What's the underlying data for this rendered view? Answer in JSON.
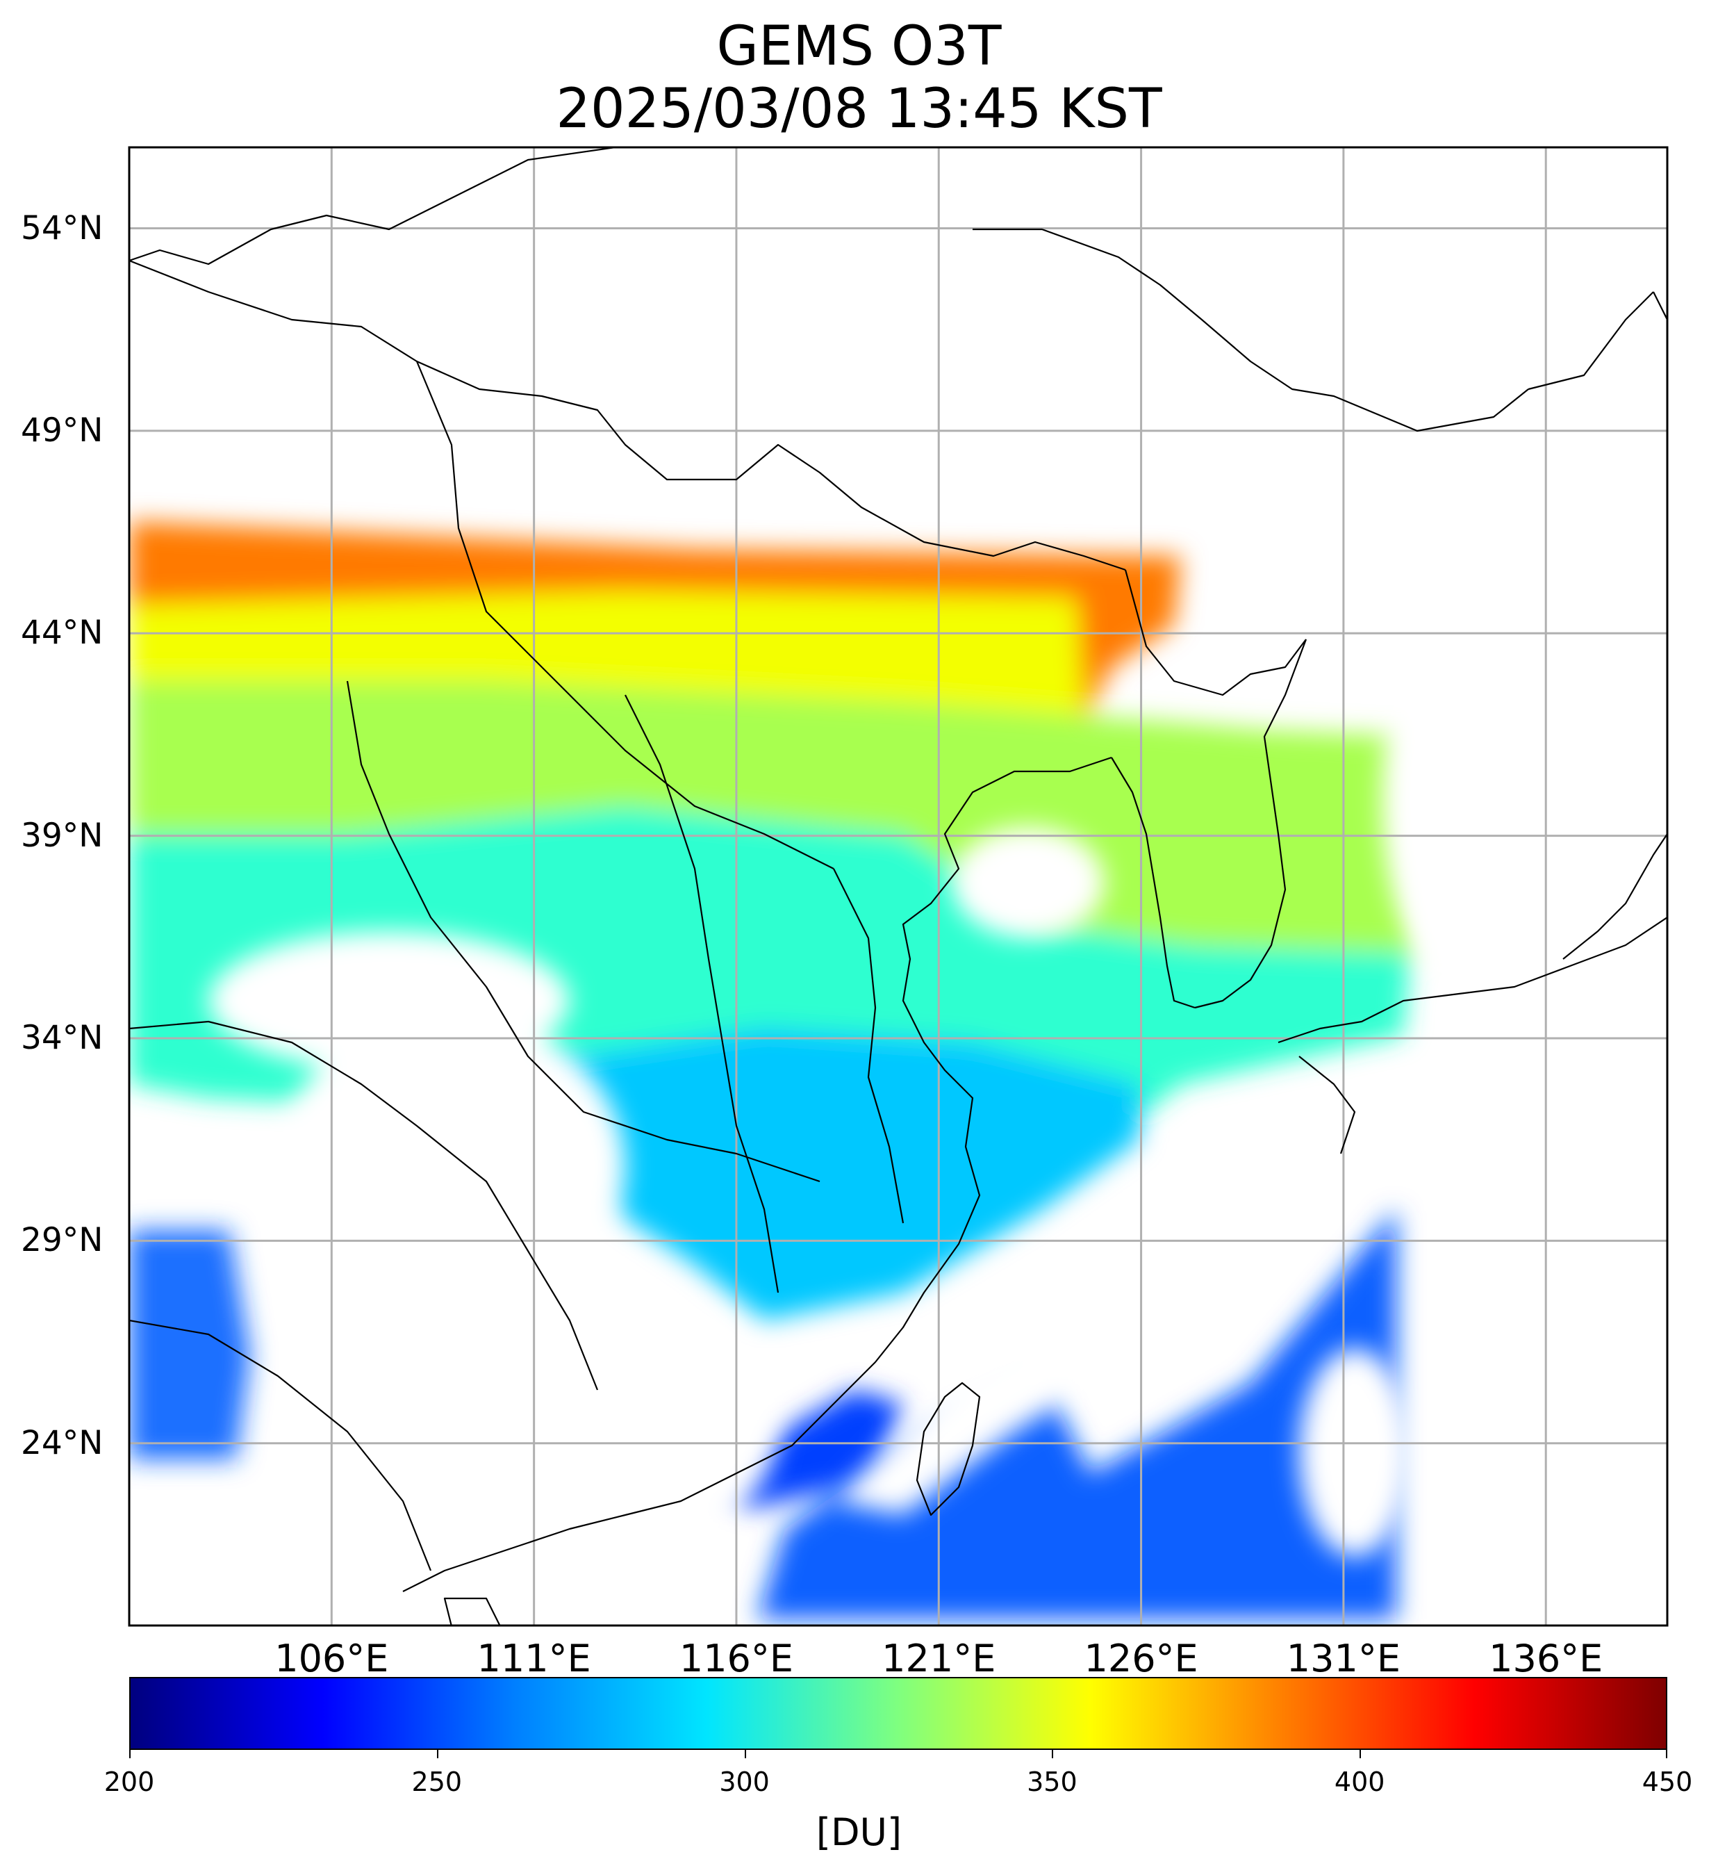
{
  "title": {
    "line1": "GEMS O3T",
    "line2": "2025/03/08 13:45 KST"
  },
  "map": {
    "lon_range": [
      101,
      139
    ],
    "lat_range": [
      19.5,
      56
    ],
    "lat_ticks": [
      {
        "value": 54,
        "label": "54°N"
      },
      {
        "value": 49,
        "label": "49°N"
      },
      {
        "value": 44,
        "label": "44°N"
      },
      {
        "value": 39,
        "label": "39°N"
      },
      {
        "value": 34,
        "label": "34°N"
      },
      {
        "value": 29,
        "label": "29°N"
      },
      {
        "value": 24,
        "label": "24°N"
      }
    ],
    "lon_ticks": [
      {
        "value": 106,
        "label": "106°E"
      },
      {
        "value": 111,
        "label": "111°E"
      },
      {
        "value": 116,
        "label": "116°E"
      },
      {
        "value": 121,
        "label": "121°E"
      },
      {
        "value": 126,
        "label": "126°E"
      },
      {
        "value": 131,
        "label": "131°E"
      },
      {
        "value": 136,
        "label": "136°E"
      }
    ],
    "grid": true,
    "colormap": "jet",
    "colors": {
      "grid": "#b0b0b0",
      "coast": "#000000",
      "stops": [
        "#00007f",
        "#0000ff",
        "#007fff",
        "#00e5ff",
        "#7fff7f",
        "#ffff00",
        "#ff7f00",
        "#ff0000",
        "#7f0000"
      ]
    }
  },
  "colorbar": {
    "min": 200,
    "max": 450,
    "ticks": [
      "200",
      "250",
      "300",
      "350",
      "400",
      "450"
    ],
    "unit_label": "[DU]"
  }
}
